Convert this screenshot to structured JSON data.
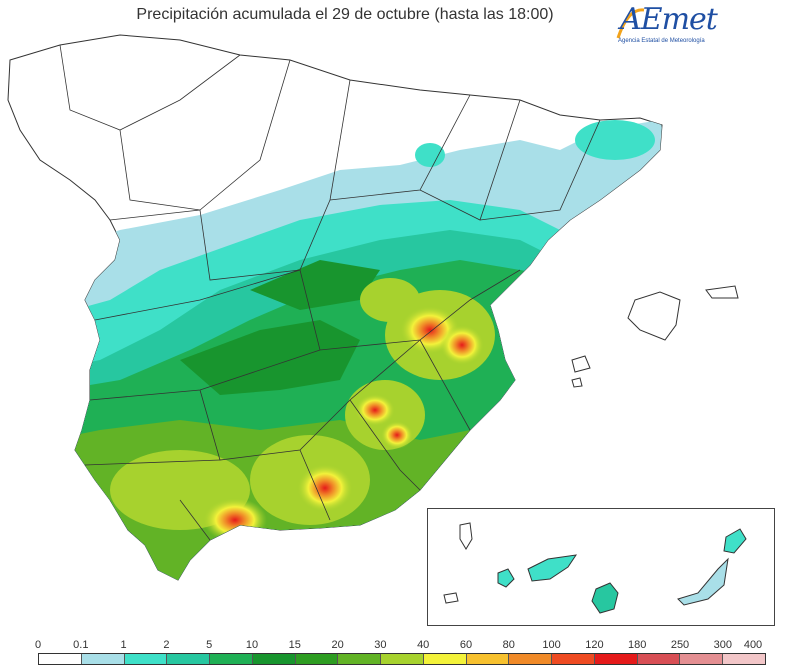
{
  "header": {
    "title": "Precipitación acumulada el 29 de octubre (hasta las 18:00)"
  },
  "logo": {
    "wordmark": "AEmet",
    "subtitle": "Agencia Estatal de Meteorología"
  },
  "map": {
    "region": "Península Ibérica, Baleares y Canarias",
    "legend": {
      "thresholds": [
        "0",
        "0.1",
        "1",
        "2",
        "5",
        "10",
        "15",
        "20",
        "30",
        "40",
        "60",
        "80",
        "100",
        "120",
        "180",
        "250",
        "300",
        "400"
      ],
      "colors": [
        "#ffffff",
        "#a9dfe8",
        "#3fe0c8",
        "#27c7a0",
        "#1fb055",
        "#18952e",
        "#2e9d22",
        "#62b326",
        "#a7d22e",
        "#f3f23a",
        "#f7c12f",
        "#f08a28",
        "#ee4b22",
        "#e51a1a",
        "#d84f55",
        "#e48f92",
        "#f2c6c8"
      ]
    }
  }
}
